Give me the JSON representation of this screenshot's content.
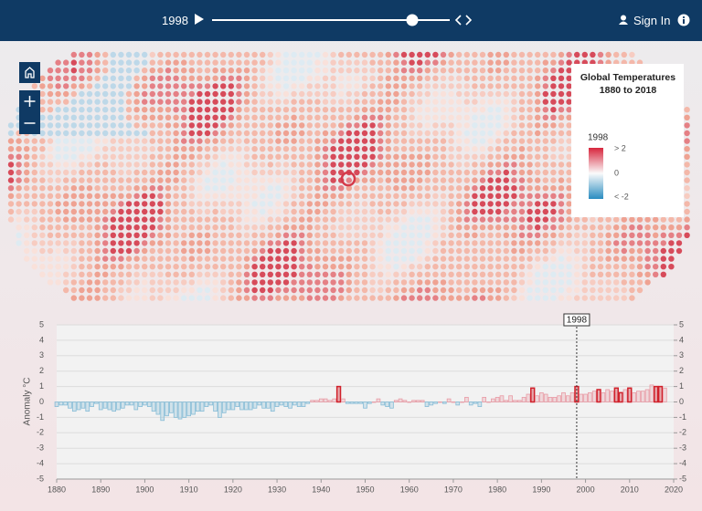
{
  "header": {
    "year": "1998",
    "sign_in": "Sign In"
  },
  "legend": {
    "title_line1": "Global Temperatures",
    "title_line2": "1880 to 2018",
    "year": "1998",
    "high": "> 2",
    "mid": "0",
    "low": "< -2"
  },
  "chart_data": {
    "type": "bar",
    "y_label": "Anomaly °C",
    "marker": 1998,
    "highlight_years": [
      1944,
      1988,
      1998,
      2003,
      2007,
      2008,
      2010,
      2016,
      2017
    ],
    "positive_color": "#e89aa4",
    "negative_color": "#86bcd6",
    "highlight_color": "#d0202a",
    "xlim": [
      1880,
      2020
    ],
    "xticks": [
      1880,
      1890,
      1900,
      1910,
      1920,
      1930,
      1940,
      1950,
      1960,
      1970,
      1980,
      1990,
      2000,
      2010,
      2020
    ],
    "ylim": [
      -5,
      5
    ],
    "yticks": [
      -5,
      -4,
      -3,
      -2,
      -1,
      0,
      1,
      2,
      3,
      4,
      5
    ],
    "y2lim": [
      -5,
      5
    ],
    "y2ticks": [
      -5,
      -4,
      -3,
      -2,
      -1,
      0,
      1,
      2,
      3,
      4,
      5
    ],
    "grid": true,
    "x": [
      1880,
      1881,
      1882,
      1883,
      1884,
      1885,
      1886,
      1887,
      1888,
      1889,
      1890,
      1891,
      1892,
      1893,
      1894,
      1895,
      1896,
      1897,
      1898,
      1899,
      1900,
      1901,
      1902,
      1903,
      1904,
      1905,
      1906,
      1907,
      1908,
      1909,
      1910,
      1911,
      1912,
      1913,
      1914,
      1915,
      1916,
      1917,
      1918,
      1919,
      1920,
      1921,
      1922,
      1923,
      1924,
      1925,
      1926,
      1927,
      1928,
      1929,
      1930,
      1931,
      1932,
      1933,
      1934,
      1935,
      1936,
      1937,
      1938,
      1939,
      1940,
      1941,
      1942,
      1943,
      1944,
      1945,
      1946,
      1947,
      1948,
      1949,
      1950,
      1951,
      1952,
      1953,
      1954,
      1955,
      1956,
      1957,
      1958,
      1959,
      1960,
      1961,
      1962,
      1963,
      1964,
      1965,
      1966,
      1967,
      1968,
      1969,
      1970,
      1971,
      1972,
      1973,
      1974,
      1975,
      1976,
      1977,
      1978,
      1979,
      1980,
      1981,
      1982,
      1983,
      1984,
      1985,
      1986,
      1987,
      1988,
      1989,
      1990,
      1991,
      1992,
      1993,
      1994,
      1995,
      1996,
      1997,
      1998,
      1999,
      2000,
      2001,
      2002,
      2003,
      2004,
      2005,
      2006,
      2007,
      2008,
      2009,
      2010,
      2011,
      2012,
      2013,
      2014,
      2015,
      2016,
      2017,
      2018
    ],
    "values": [
      -0.3,
      -0.2,
      -0.2,
      -0.4,
      -0.6,
      -0.5,
      -0.4,
      -0.6,
      -0.3,
      -0.1,
      -0.5,
      -0.4,
      -0.5,
      -0.6,
      -0.5,
      -0.4,
      -0.2,
      -0.2,
      -0.5,
      -0.3,
      -0.2,
      -0.3,
      -0.6,
      -0.8,
      -1.2,
      -0.9,
      -0.7,
      -1.0,
      -1.1,
      -1.0,
      -0.9,
      -0.8,
      -0.6,
      -0.6,
      -0.3,
      -0.2,
      -0.6,
      -1.0,
      -0.7,
      -0.5,
      -0.5,
      -0.3,
      -0.5,
      -0.5,
      -0.5,
      -0.4,
      -0.2,
      -0.4,
      -0.4,
      -0.6,
      -0.3,
      -0.2,
      -0.3,
      -0.4,
      -0.2,
      -0.3,
      -0.3,
      -0.1,
      0.1,
      0.1,
      0.2,
      0.2,
      0.1,
      0.2,
      1.0,
      0.2,
      -0.1,
      -0.1,
      -0.1,
      -0.1,
      -0.4,
      -0.1,
      0.0,
      0.2,
      -0.2,
      -0.3,
      -0.4,
      0.1,
      0.2,
      0.1,
      0.0,
      0.1,
      0.1,
      0.1,
      -0.3,
      -0.2,
      -0.1,
      0.0,
      -0.1,
      0.2,
      0.0,
      -0.2,
      0.0,
      0.3,
      -0.2,
      -0.1,
      -0.3,
      0.3,
      0.0,
      0.2,
      0.3,
      0.4,
      0.1,
      0.4,
      0.1,
      0.1,
      0.3,
      0.5,
      0.9,
      0.4,
      0.6,
      0.5,
      0.3,
      0.3,
      0.4,
      0.6,
      0.4,
      0.6,
      1.0,
      0.5,
      0.5,
      0.6,
      0.7,
      0.8,
      0.6,
      0.8,
      0.7,
      0.9,
      0.6,
      0.8,
      0.9,
      0.6,
      0.7,
      0.7,
      0.8,
      1.1,
      1.0,
      1.0,
      0.9
    ]
  }
}
